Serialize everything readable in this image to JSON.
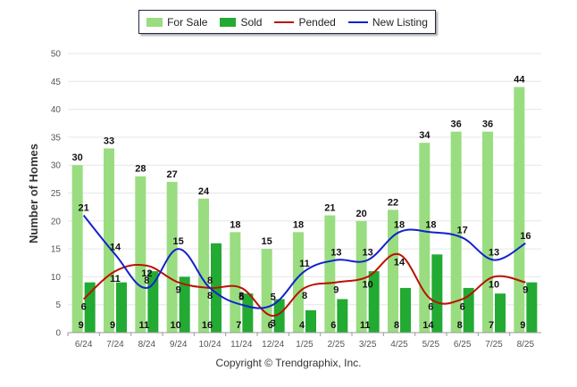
{
  "chart_data": {
    "type": "bar",
    "categories": [
      "6/24",
      "7/24",
      "8/24",
      "9/24",
      "10/24",
      "11/24",
      "12/24",
      "1/25",
      "2/25",
      "3/25",
      "4/25",
      "5/25",
      "6/25",
      "7/25",
      "8/25"
    ],
    "ylabel": "Number of Homes",
    "xlabel": "",
    "ylim": [
      0,
      50
    ],
    "yticks": [
      0,
      5,
      10,
      15,
      20,
      25,
      30,
      35,
      40,
      45,
      50
    ],
    "grid": true,
    "legend_position": "top-center",
    "series": [
      {
        "name": "For Sale",
        "kind": "bar",
        "color": "#99dd80",
        "values": [
          30,
          33,
          28,
          27,
          24,
          18,
          15,
          18,
          21,
          20,
          22,
          34,
          36,
          36,
          44
        ]
      },
      {
        "name": "Sold",
        "kind": "bar",
        "color": "#22aa33",
        "values": [
          9,
          9,
          11,
          10,
          16,
          7,
          6,
          4,
          6,
          11,
          8,
          14,
          8,
          7,
          9
        ]
      },
      {
        "name": "Pended",
        "kind": "line",
        "color": "#bb1100",
        "values": [
          6,
          11,
          12,
          9,
          8,
          8,
          3,
          8,
          9,
          10,
          14,
          6,
          6,
          10,
          9
        ]
      },
      {
        "name": "New Listing",
        "kind": "line",
        "color": "#1122cc",
        "values": [
          21,
          14,
          8,
          15,
          8,
          5,
          5,
          11,
          13,
          13,
          18,
          18,
          17,
          13,
          16
        ]
      }
    ]
  },
  "footer": {
    "copyright": "Copyright © Trendgraphix, Inc."
  }
}
